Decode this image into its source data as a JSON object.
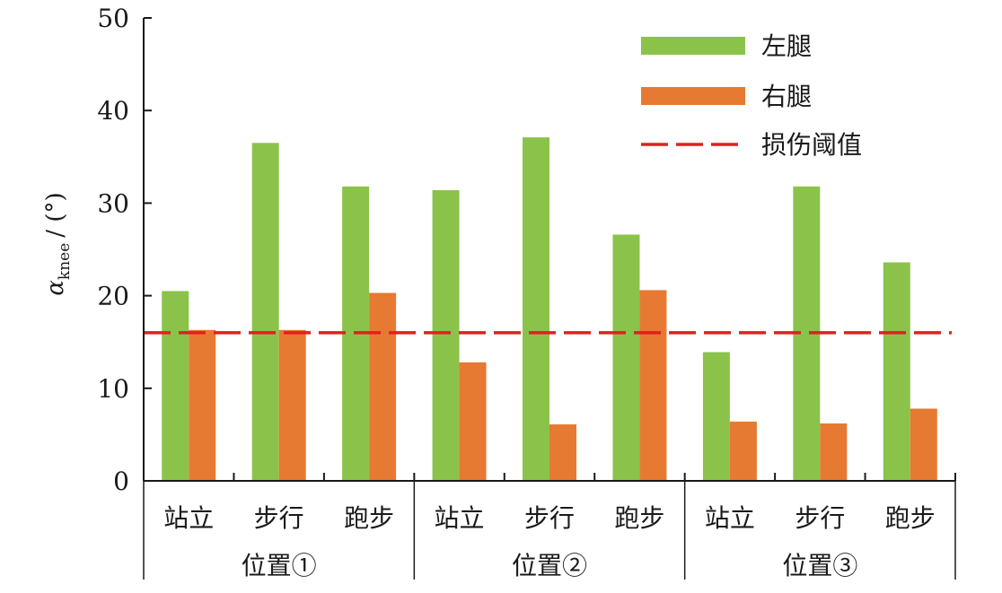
{
  "chart_data": {
    "type": "bar",
    "ylabel": "α_knee / (°)",
    "ylabel_symbol": "α",
    "ylabel_sub": "knee",
    "ylabel_unit": "/ (°)",
    "ylim": [
      0,
      50
    ],
    "yticks": [
      "0",
      "10",
      "20",
      "30",
      "40",
      "50"
    ],
    "groups": [
      {
        "label": "位置①",
        "categories": [
          "站立",
          "步行",
          "跑步"
        ]
      },
      {
        "label": "位置②",
        "categories": [
          "站立",
          "步行",
          "跑步"
        ]
      },
      {
        "label": "位置③",
        "categories": [
          "站立",
          "步行",
          "跑步"
        ]
      }
    ],
    "series": [
      {
        "name": "左腿",
        "color": "#8bc34a",
        "values": [
          20.5,
          36.5,
          31.8,
          31.4,
          37.1,
          26.6,
          13.9,
          31.8,
          23.6
        ]
      },
      {
        "name": "右腿",
        "color": "#e67a32",
        "values": [
          16.3,
          16.3,
          20.3,
          12.8,
          6.1,
          20.6,
          6.4,
          6.2,
          7.8
        ]
      }
    ],
    "threshold": {
      "name": "损伤阈值",
      "value": 16.0,
      "color": "#e02020",
      "style": "dashed"
    },
    "legend": "top-right",
    "grid": false
  }
}
